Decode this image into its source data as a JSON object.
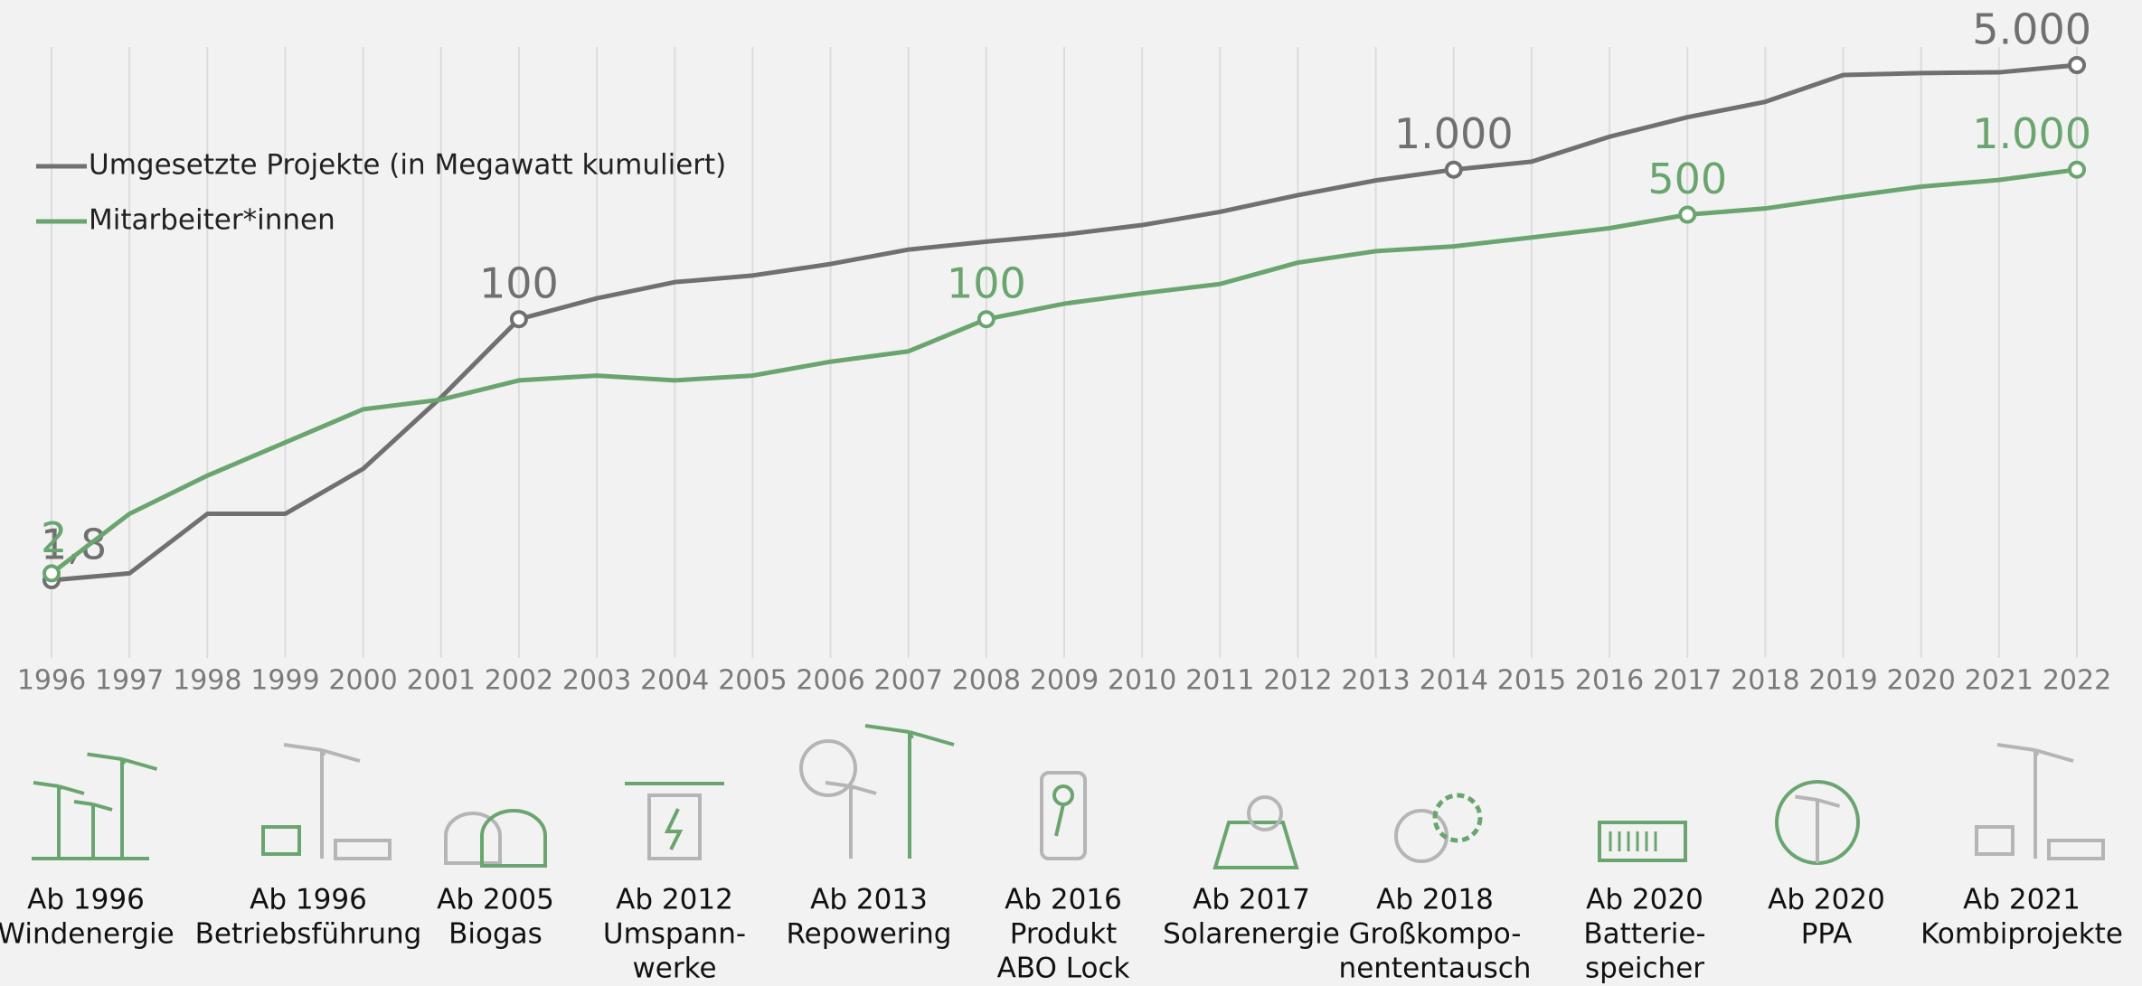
{
  "chart_data": {
    "type": "line",
    "x": [
      1996,
      1997,
      1998,
      1999,
      2000,
      2001,
      2002,
      2003,
      2004,
      2005,
      2006,
      2007,
      2008,
      2009,
      2010,
      2011,
      2012,
      2013,
      2014,
      2015,
      2016,
      2017,
      2018,
      2019,
      2020,
      2021,
      2022
    ],
    "log_scale": true,
    "grid": true,
    "legend": "top-left",
    "series": [
      {
        "name": "Umgesetzte Projekte (in Megawatt kumuliert)",
        "color": "#707070",
        "values": [
          1.8,
          2,
          5,
          5,
          10,
          30,
          100,
          138,
          177,
          196,
          234,
          292,
          330,
          368,
          426,
          522,
          675,
          847,
          1000,
          1130,
          1660,
          2240,
          2840,
          4290,
          4420,
          4470,
          5000
        ],
        "value_labels": [
          "1,8",
          null,
          null,
          null,
          null,
          null,
          "100",
          null,
          null,
          null,
          null,
          null,
          null,
          null,
          null,
          null,
          null,
          null,
          "1.000",
          null,
          null,
          null,
          null,
          null,
          null,
          null,
          "5.000"
        ]
      },
      {
        "name": "Mitarbeiter*innen",
        "color": "#6aa56f",
        "values": [
          2,
          5,
          9,
          15,
          25,
          29,
          39,
          42,
          39,
          42,
          52,
          61,
          100,
          127,
          149,
          172,
          239,
          285,
          307,
          352,
          406,
          500,
          550,
          655,
          770,
          853,
          1000
        ],
        "value_labels": [
          "2",
          null,
          null,
          null,
          null,
          null,
          null,
          null,
          null,
          null,
          null,
          null,
          "100",
          null,
          null,
          null,
          null,
          null,
          null,
          null,
          null,
          "500",
          null,
          null,
          null,
          null,
          "1.000"
        ]
      }
    ]
  },
  "milestones": [
    {
      "lines": [
        "Ab 1996",
        "Windenergie"
      ]
    },
    {
      "lines": [
        "Ab 1996",
        "Betriebsführung"
      ]
    },
    {
      "lines": [
        "Ab 2005",
        "Biogas"
      ]
    },
    {
      "lines": [
        "Ab 2012",
        "Umspann-",
        "werke"
      ]
    },
    {
      "lines": [
        "Ab 2013",
        "Repowering"
      ]
    },
    {
      "lines": [
        "Ab 2016",
        "Produkt",
        "ABO Lock"
      ]
    },
    {
      "lines": [
        "Ab 2017",
        "Solarenergie"
      ]
    },
    {
      "lines": [
        "Ab 2018",
        "Großkompo-",
        "nententausch"
      ]
    },
    {
      "lines": [
        "Ab 2020",
        "Batterie-",
        "speicher"
      ]
    },
    {
      "lines": [
        "Ab 2020",
        "PPA"
      ]
    },
    {
      "lines": [
        "Ab 2021",
        "Kombiprojekte"
      ]
    }
  ]
}
